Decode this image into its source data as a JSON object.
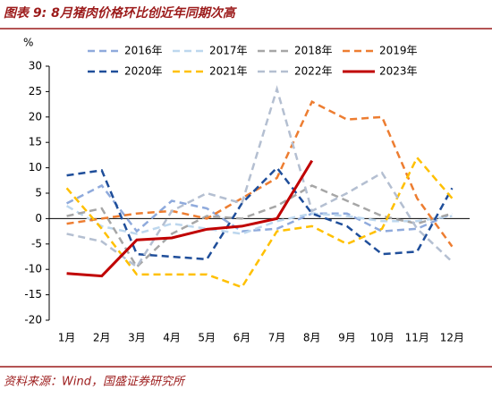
{
  "chart_data": {
    "type": "line",
    "title": "图表 9: 8月猪肉价格环比创近年同期次高",
    "source": "资料来源：Wind，国盛证券研究所",
    "ylabel": "%",
    "categories": [
      "1月",
      "2月",
      "3月",
      "4月",
      "5月",
      "6月",
      "7月",
      "8月",
      "9月",
      "10月",
      "11月",
      "12月"
    ],
    "ylim": [
      -20,
      30
    ],
    "yticks": [
      -20,
      -15,
      -10,
      -5,
      0,
      5,
      10,
      15,
      20,
      25,
      30
    ],
    "grid": false,
    "legend": "top",
    "series": [
      {
        "name": "2016年",
        "color": "#8FAADC",
        "linestyle": "dashed",
        "values": [
          3,
          6.5,
          -2.5,
          3.5,
          2,
          -2.5,
          -2,
          1,
          1,
          -2.5,
          -2,
          1
        ]
      },
      {
        "name": "2017年",
        "color": "#BDD7EE",
        "linestyle": "dashed",
        "values": [
          2.5,
          -1.5,
          -3,
          -1,
          -2,
          -3,
          -0.5,
          1,
          0.5,
          -0.5,
          -0.5,
          0.5
        ]
      },
      {
        "name": "2018年",
        "color": "#A6A6A6",
        "linestyle": "dashed",
        "values": [
          0.5,
          2,
          -9.5,
          -3,
          0.5,
          0,
          2.5,
          6.5,
          3.5,
          0.5,
          -1,
          1
        ]
      },
      {
        "name": "2019年",
        "color": "#ED7D31",
        "linestyle": "dashed",
        "values": [
          -1,
          0,
          1,
          1.5,
          0,
          4,
          8,
          23,
          19.5,
          20,
          4,
          -5.5
        ]
      },
      {
        "name": "2020年",
        "color": "#1F4E9A",
        "linestyle": "dashed",
        "values": [
          8.5,
          9.5,
          -7,
          -7.5,
          -8,
          3,
          10,
          1,
          -1.5,
          -7,
          -6.5,
          6
        ]
      },
      {
        "name": "2021年",
        "color": "#FFC000",
        "linestyle": "dashed",
        "values": [
          6,
          -2,
          -11,
          -11,
          -11,
          -13.5,
          -2.5,
          -1.5,
          -5,
          -2,
          12,
          4
        ]
      },
      {
        "name": "2022年",
        "color": "#B4BFD1",
        "linestyle": "dashed",
        "values": [
          -3,
          -4.5,
          -9.5,
          1.5,
          5,
          3,
          25.5,
          1.5,
          5,
          9,
          -2,
          -8.5
        ]
      },
      {
        "name": "2023年",
        "color": "#C00000",
        "linestyle": "solid",
        "values": [
          -10.8,
          -11.3,
          -4.2,
          -3.8,
          -2.1,
          -1.5,
          0,
          11.4,
          null,
          null,
          null,
          null
        ]
      }
    ]
  }
}
